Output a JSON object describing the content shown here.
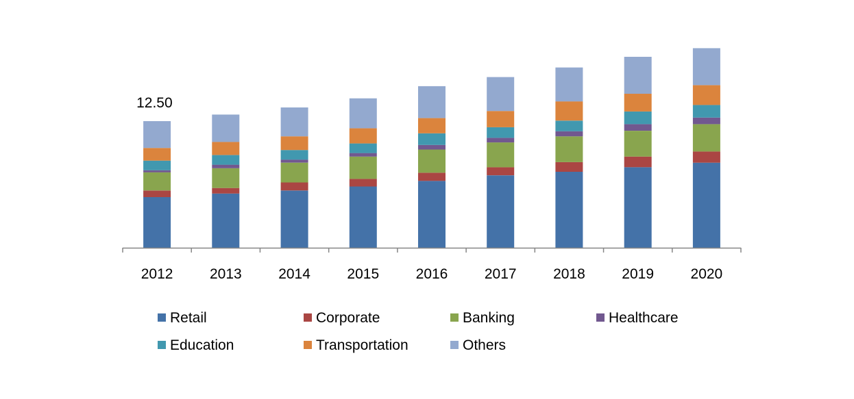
{
  "chart_data": {
    "type": "bar",
    "stacked": true,
    "categories": [
      "2012",
      "2013",
      "2014",
      "2015",
      "2016",
      "2017",
      "2018",
      "2019",
      "2020"
    ],
    "series": [
      {
        "name": "Retail",
        "color": "#4472A8",
        "values": [
          5.0,
          5.35,
          5.65,
          6.05,
          6.6,
          7.15,
          7.5,
          7.95,
          8.4
        ]
      },
      {
        "name": "Corporate",
        "color": "#AA4643",
        "values": [
          0.65,
          0.55,
          0.8,
          0.75,
          0.8,
          0.8,
          0.95,
          1.05,
          1.1
        ]
      },
      {
        "name": "Banking",
        "color": "#89A54E",
        "values": [
          1.8,
          1.95,
          1.95,
          2.2,
          2.3,
          2.45,
          2.55,
          2.55,
          2.7
        ]
      },
      {
        "name": "Healthcare",
        "color": "#71588F",
        "values": [
          0.2,
          0.35,
          0.3,
          0.35,
          0.45,
          0.45,
          0.5,
          0.65,
          0.65
        ]
      },
      {
        "name": "Education",
        "color": "#4198AF",
        "values": [
          0.95,
          0.95,
          0.95,
          0.95,
          1.15,
          1.05,
          1.05,
          1.25,
          1.25
        ]
      },
      {
        "name": "Transportation",
        "color": "#DB843D",
        "values": [
          1.25,
          1.3,
          1.35,
          1.5,
          1.5,
          1.6,
          1.9,
          1.75,
          1.95
        ]
      },
      {
        "name": "Others",
        "color": "#93A9CF",
        "values": [
          2.65,
          2.7,
          2.85,
          2.95,
          3.15,
          3.35,
          3.35,
          3.65,
          3.65
        ]
      }
    ],
    "annotations": [
      {
        "category": "2012",
        "label": "12.50"
      }
    ],
    "ylim": [
      0,
      20
    ],
    "legend": "bottom",
    "grid": false,
    "title": "",
    "xlabel": "",
    "ylabel": ""
  }
}
